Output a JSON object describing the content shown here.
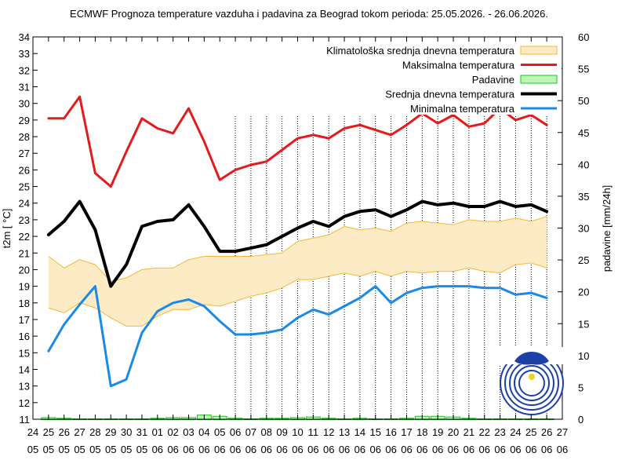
{
  "chart_data": {
    "type": "line",
    "title": "ECMWF Prognoza temperature vazduha i padavina za Beograd tokom perioda: 25.05.2026. - 26.06.2026.",
    "ylabel": "t2m [ °C]",
    "y2label": "padavine [mm/24h]",
    "ylim": [
      11,
      34
    ],
    "y2lim": [
      0,
      60
    ],
    "y_ticks": [
      "11",
      "12",
      "13",
      "14",
      "15",
      "16",
      "17",
      "18",
      "19",
      "20",
      "21",
      "22",
      "23",
      "24",
      "25",
      "26",
      "27",
      "28",
      "29",
      "30",
      "31",
      "32",
      "33",
      "34"
    ],
    "y2_ticks": [
      "0",
      "5",
      "10",
      "15",
      "20",
      "25",
      "30",
      "35",
      "40",
      "45",
      "50",
      "55",
      "60"
    ],
    "x_ticks": [
      [
        "24",
        "05"
      ],
      [
        "25",
        "05"
      ],
      [
        "26",
        "05"
      ],
      [
        "27",
        "05"
      ],
      [
        "28",
        "05"
      ],
      [
        "29",
        "05"
      ],
      [
        "30",
        "05"
      ],
      [
        "31",
        "05"
      ],
      [
        "01",
        "06"
      ],
      [
        "02",
        "06"
      ],
      [
        "03",
        "06"
      ],
      [
        "04",
        "06"
      ],
      [
        "05",
        "06"
      ],
      [
        "06",
        "06"
      ],
      [
        "07",
        "06"
      ],
      [
        "08",
        "06"
      ],
      [
        "09",
        "06"
      ],
      [
        "10",
        "06"
      ],
      [
        "11",
        "06"
      ],
      [
        "12",
        "06"
      ],
      [
        "13",
        "06"
      ],
      [
        "14",
        "06"
      ],
      [
        "15",
        "06"
      ],
      [
        "16",
        "06"
      ],
      [
        "17",
        "06"
      ],
      [
        "18",
        "06"
      ],
      [
        "19",
        "06"
      ],
      [
        "20",
        "06"
      ],
      [
        "21",
        "06"
      ],
      [
        "22",
        "06"
      ],
      [
        "23",
        "06"
      ],
      [
        "24",
        "06"
      ],
      [
        "25",
        "06"
      ],
      [
        "26",
        "06"
      ],
      [
        "27",
        "06"
      ]
    ],
    "grid": "vertical dotted lines from 06.06",
    "legend_position": "top-right",
    "x": [
      "25.05",
      "26.05",
      "27.05",
      "28.05",
      "29.05",
      "30.05",
      "31.05",
      "01.06",
      "02.06",
      "03.06",
      "04.06",
      "05.06",
      "06.06",
      "07.06",
      "08.06",
      "09.06",
      "10.06",
      "11.06",
      "12.06",
      "13.06",
      "14.06",
      "15.06",
      "16.06",
      "17.06",
      "18.06",
      "19.06",
      "20.06",
      "21.06",
      "22.06",
      "23.06",
      "24.06",
      "25.06",
      "26.06"
    ],
    "series": [
      {
        "name": "Klimatološka srednja dnevna temperatura",
        "kind": "band",
        "color": "#f7b733",
        "fill": "#fdebc5",
        "lower": [
          17.7,
          17.4,
          18.0,
          17.7,
          17.1,
          16.6,
          16.6,
          17.2,
          17.6,
          17.6,
          17.9,
          17.8,
          18.1,
          18.4,
          18.6,
          18.9,
          19.4,
          19.4,
          19.6,
          19.8,
          19.6,
          19.9,
          19.6,
          19.9,
          19.8,
          19.9,
          19.9,
          20.1,
          19.9,
          19.8,
          20.3,
          20.4,
          20.1
        ],
        "upper": [
          20.8,
          20.1,
          20.6,
          20.3,
          19.3,
          19.5,
          20.0,
          20.1,
          20.1,
          20.6,
          20.8,
          20.8,
          20.8,
          20.8,
          20.9,
          21.0,
          21.7,
          21.9,
          22.1,
          22.6,
          22.4,
          22.5,
          22.3,
          22.8,
          22.9,
          22.8,
          22.7,
          23.0,
          22.9,
          22.9,
          23.1,
          22.9,
          23.2
        ]
      },
      {
        "name": "Maksimalna temperatura",
        "kind": "line",
        "color": "#e8191b",
        "values": [
          29.1,
          29.1,
          30.4,
          25.8,
          25.0,
          27.1,
          29.1,
          28.5,
          28.2,
          29.7,
          27.7,
          25.4,
          26.0,
          26.3,
          26.5,
          27.2,
          27.9,
          28.1,
          27.9,
          28.5,
          28.7,
          28.4,
          28.1,
          28.7,
          29.4,
          28.8,
          29.3,
          28.6,
          28.8,
          29.7,
          29.0,
          29.3,
          28.7
        ]
      },
      {
        "name": "Padavine",
        "kind": "bar",
        "color": "#22c22a",
        "fill": "#bdf5b6",
        "values": [
          0.2,
          0.1,
          0,
          0,
          0,
          0,
          0,
          0.1,
          0.2,
          0.2,
          0.6,
          0.4,
          0.1,
          0,
          0.1,
          0.1,
          0.2,
          0.3,
          0.1,
          0,
          0.1,
          0,
          0,
          0.1,
          0.4,
          0.4,
          0.3,
          0.1,
          0,
          0,
          0,
          0,
          0
        ]
      },
      {
        "name": "Srednja dnevna temperatura",
        "kind": "line",
        "color": "#000000",
        "values": [
          22.1,
          22.9,
          24.1,
          22.4,
          19.0,
          20.3,
          22.6,
          22.9,
          23.0,
          23.9,
          22.6,
          21.1,
          21.1,
          21.3,
          21.5,
          22.0,
          22.5,
          22.9,
          22.6,
          23.2,
          23.5,
          23.6,
          23.2,
          23.6,
          24.1,
          23.9,
          24.0,
          23.8,
          23.8,
          24.1,
          23.8,
          23.9,
          23.5
        ]
      },
      {
        "name": "Minimalna temperatura",
        "kind": "line",
        "color": "#1b8ae6",
        "values": [
          15.1,
          16.7,
          17.9,
          19.0,
          13.0,
          13.4,
          16.2,
          17.5,
          18.0,
          18.2,
          17.8,
          16.9,
          16.1,
          16.1,
          16.2,
          16.4,
          17.1,
          17.6,
          17.3,
          17.8,
          18.3,
          19.0,
          18.0,
          18.6,
          18.9,
          19.0,
          19.0,
          19.0,
          18.9,
          18.9,
          18.5,
          18.6,
          18.3
        ]
      }
    ]
  }
}
